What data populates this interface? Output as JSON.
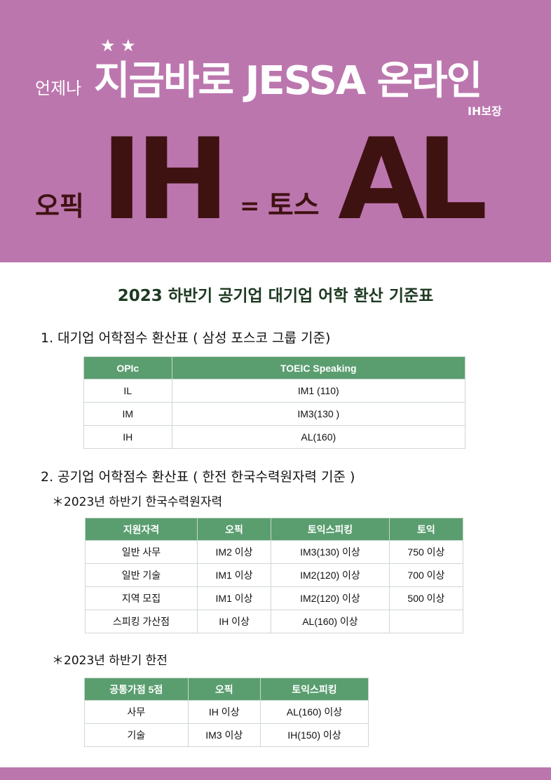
{
  "hero": {
    "stars": "★ ★",
    "prefix": "언제나",
    "headline": "지금바로 JESSA 온라인",
    "guarantee": "IH보장",
    "opic_label": "오픽",
    "opic_grade": "IH",
    "equals": "=",
    "toss_label": "토스",
    "toss_grade": "AL"
  },
  "title": "2023 하반기 공기업 대기업 어학 환산 기준표",
  "section1": {
    "heading": "1. 대기업  어학점수 환산표 ( 삼성  포스코 그룹 기준)",
    "headers": [
      "OPIc",
      "TOEIC Speaking"
    ],
    "rows": [
      [
        "IL",
        "IM1 (110)"
      ],
      [
        "IM",
        "IM3(130 )"
      ],
      [
        "IH",
        "AL(160)"
      ]
    ]
  },
  "section2": {
    "heading": "2. 공기업  어학점수 환산표  ( 한전 한국수력원자력 기준 )",
    "sub1": "＊2023년 하반기 한국수력원자력",
    "headers1": [
      "지원자격",
      "오픽",
      "토익스피킹",
      "토익"
    ],
    "rows1": [
      [
        "일반 사무",
        "IM2 이상",
        "IM3(130) 이상",
        "750 이상"
      ],
      [
        "일반 기술",
        "IM1 이상",
        "IM2(120) 이상",
        "700 이상"
      ],
      [
        "지역 모집",
        "IM1 이상",
        "IM2(120) 이상",
        "500 이상"
      ],
      [
        "스피킹 가산점",
        "IH 이상",
        "AL(160) 이상",
        ""
      ]
    ],
    "sub2": "＊2023년 하반기 한전",
    "headers2": [
      "공통가점 5점",
      "오픽",
      "토익스피킹"
    ],
    "rows2": [
      [
        "사무",
        "IH 이상",
        "AL(160) 이상"
      ],
      [
        "기술",
        "IM3 이상",
        "IH(150) 이상"
      ]
    ]
  },
  "colors": {
    "hero": "#bc76ae",
    "header_green": "#5a9e6f",
    "dark": "#3f1212"
  }
}
